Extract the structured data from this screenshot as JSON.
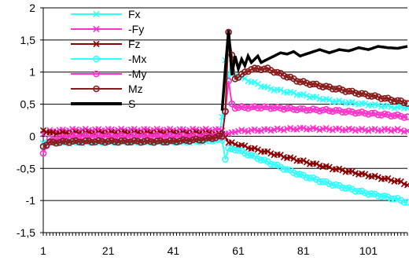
{
  "chart_data": {
    "type": "line",
    "title": "",
    "xlabel": "",
    "ylabel": "",
    "xlim": [
      1,
      113
    ],
    "ylim": [
      -1.5,
      2
    ],
    "grid": {
      "x": false,
      "y": true
    },
    "legend_position": "top-left-inside",
    "x_ticks": [
      "1",
      "21",
      "41",
      "61",
      "81",
      "101"
    ],
    "x_tick_values": [
      1,
      21,
      41,
      61,
      81,
      101
    ],
    "y_ticks": [
      "2",
      "1,5",
      "1",
      "0,5",
      "0",
      "-0,5",
      "-1",
      "-1,5"
    ],
    "y_tick_values": [
      2,
      1.5,
      1,
      0.5,
      0,
      -0.5,
      -1,
      -1.5
    ],
    "series": [
      {
        "name": "Fx",
        "color": "#33ffff",
        "marker": "x",
        "x": [
          1,
          4,
          10,
          20,
          30,
          40,
          50,
          55,
          56,
          57,
          58,
          59,
          60,
          65,
          70,
          80,
          90,
          100,
          110,
          113
        ],
        "y": [
          -0.1,
          -0.1,
          -0.1,
          -0.09,
          -0.09,
          -0.09,
          -0.08,
          -0.05,
          0.3,
          1.2,
          0.9,
          1.2,
          0.95,
          0.85,
          0.75,
          0.65,
          0.55,
          0.5,
          0.45,
          0.45
        ]
      },
      {
        "name": "-Fy",
        "color": "#ff33cc",
        "marker": "x",
        "x": [
          1,
          3,
          10,
          20,
          30,
          40,
          50,
          56,
          57,
          58,
          60,
          70,
          80,
          90,
          100,
          110,
          113
        ],
        "y": [
          0.05,
          0.08,
          0.1,
          0.1,
          0.1,
          0.1,
          0.1,
          0.1,
          0.05,
          0.03,
          0.08,
          0.1,
          0.12,
          0.11,
          0.1,
          0.1,
          0.08
        ]
      },
      {
        "name": "Fz",
        "color": "#8b0000",
        "marker": "x",
        "x": [
          1,
          3,
          10,
          20,
          30,
          40,
          50,
          56,
          57,
          58,
          60,
          70,
          80,
          90,
          100,
          110,
          113
        ],
        "y": [
          0.1,
          0.05,
          0.05,
          0.05,
          0.05,
          0.05,
          0.05,
          0.03,
          0.0,
          -0.1,
          -0.12,
          -0.25,
          -0.38,
          -0.5,
          -0.6,
          -0.7,
          -0.75
        ]
      },
      {
        "name": "-Mx",
        "color": "#33ffff",
        "marker": "o",
        "x": [
          1,
          3,
          10,
          20,
          30,
          40,
          50,
          56,
          57,
          58,
          60,
          70,
          80,
          90,
          100,
          110,
          113
        ],
        "y": [
          -0.15,
          -0.05,
          -0.08,
          -0.08,
          -0.08,
          -0.08,
          -0.07,
          -0.05,
          -0.35,
          -0.2,
          -0.2,
          -0.4,
          -0.6,
          -0.75,
          -0.88,
          -0.98,
          -1.03
        ]
      },
      {
        "name": "-My",
        "color": "#ff33cc",
        "marker": "o",
        "x": [
          1,
          3,
          10,
          20,
          30,
          40,
          50,
          56,
          57,
          58,
          59,
          60,
          70,
          80,
          90,
          100,
          110,
          113
        ],
        "y": [
          -0.25,
          -0.05,
          0.0,
          0.0,
          0.0,
          0.0,
          0.0,
          0.0,
          0.4,
          0.85,
          0.5,
          0.45,
          0.45,
          0.42,
          0.4,
          0.36,
          0.32,
          0.3
        ]
      },
      {
        "name": "Mz",
        "color": "#8b1a1a",
        "marker": "o",
        "x": [
          1,
          3,
          10,
          20,
          30,
          40,
          50,
          56,
          57,
          58,
          59,
          60,
          65,
          70,
          80,
          90,
          100,
          110,
          113
        ],
        "y": [
          -0.15,
          -0.1,
          -0.08,
          -0.08,
          -0.08,
          -0.08,
          -0.05,
          0.0,
          0.4,
          1.62,
          1.25,
          0.9,
          1.05,
          1.05,
          0.85,
          0.75,
          0.65,
          0.55,
          0.52
        ]
      },
      {
        "name": "S",
        "color": "#000000",
        "marker": "none",
        "x": [
          56,
          57,
          58,
          59,
          60,
          61,
          62,
          63,
          64,
          65,
          66,
          67,
          68,
          70,
          72,
          74,
          76,
          78,
          80,
          83,
          86,
          89,
          92,
          95,
          98,
          101,
          104,
          107,
          110,
          113
        ],
        "y": [
          0.4,
          1.05,
          1.65,
          0.95,
          1.25,
          1.05,
          1.2,
          1.1,
          1.25,
          1.15,
          1.2,
          1.25,
          1.15,
          1.2,
          1.25,
          1.3,
          1.28,
          1.32,
          1.25,
          1.3,
          1.35,
          1.3,
          1.35,
          1.33,
          1.38,
          1.35,
          1.4,
          1.38,
          1.37,
          1.4
        ]
      }
    ]
  }
}
